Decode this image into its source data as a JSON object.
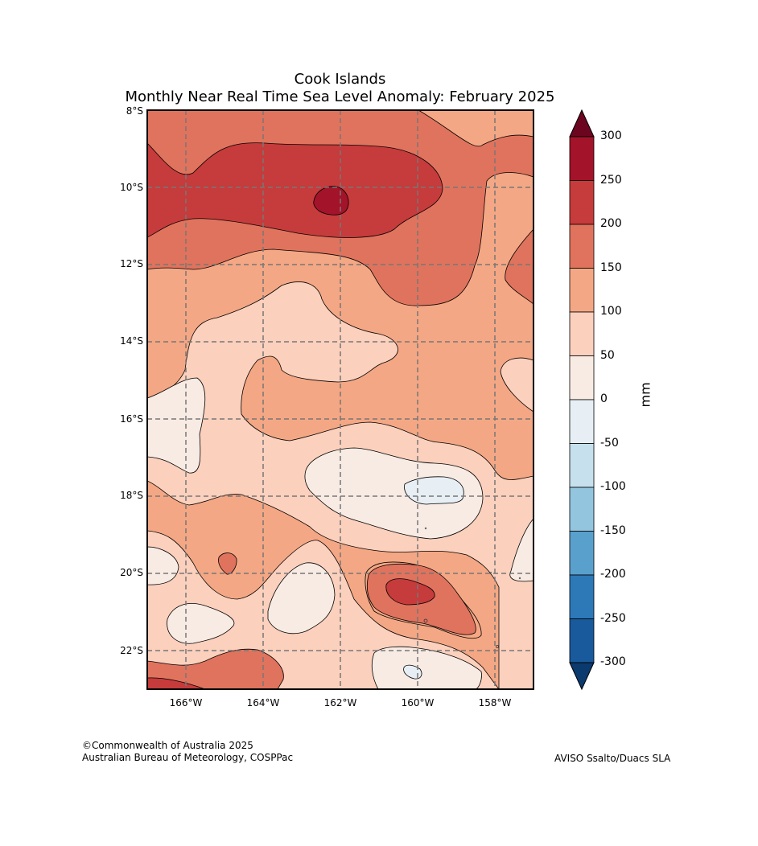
{
  "title": "Cook Islands",
  "subtitle": "Monthly Near Real Time Sea Level Anomaly: February 2025",
  "map": {
    "lat_labels": [
      "8°S",
      "10°S",
      "12°S",
      "14°S",
      "16°S",
      "18°S",
      "20°S",
      "22°S"
    ],
    "lon_labels": [
      "166°W",
      "164°W",
      "162°W",
      "160°W",
      "158°W"
    ],
    "extent": {
      "lon_min": -167.0,
      "lon_max": -157.0,
      "lat_min": -23.0,
      "lat_max": -8.0
    }
  },
  "colorbar": {
    "unit": "mm",
    "levels": [
      300,
      250,
      200,
      150,
      100,
      50,
      0,
      -50,
      -100,
      -150,
      -200,
      -250,
      -300
    ],
    "labels": [
      "300",
      "250",
      "200",
      "150",
      "100",
      "50",
      "0",
      "-50",
      "-100",
      "-150",
      "-200",
      "-250",
      "-300"
    ],
    "colors": [
      "#a31329",
      "#c63b3b",
      "#e0735d",
      "#f4a784",
      "#fbd0bd",
      "#f8ebe4",
      "#e7eff4",
      "#c6e0ed",
      "#93c5df",
      "#5aa0cc",
      "#2d78b7",
      "#195a9c"
    ],
    "over_color": "#6c0520",
    "under_color": "#0b3a6e"
  },
  "footer": {
    "copyright": "©Commonwealth of Australia 2025",
    "agency": "Australian Bureau of Meteorology, COSPPac",
    "source": "AVISO Ssalto/Duacs SLA"
  }
}
